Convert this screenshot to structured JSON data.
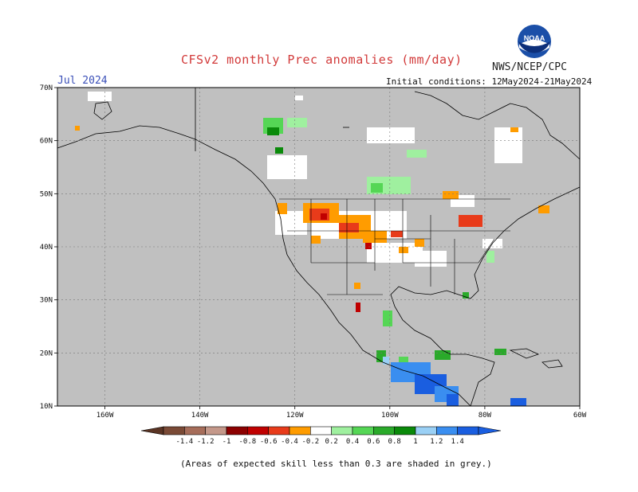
{
  "header": {
    "title": "CFSv2 monthly Prec anomalies (mm/day)",
    "agency": "NWS/NCEP/CPC",
    "month": "Jul 2024",
    "initial_conditions": "Initial conditions: 12May2024-21May2024",
    "logo_text": "NOAA"
  },
  "map": {
    "region": "North America",
    "lon_range": [
      -170,
      -60
    ],
    "lat_range": [
      10,
      70
    ],
    "background_color": "#c0c0c0",
    "x_ticks": [
      "160W",
      "140W",
      "120W",
      "100W",
      "80W",
      "60W"
    ],
    "y_ticks": [
      "70N",
      "60N",
      "50N",
      "40N",
      "30N",
      "20N",
      "10N"
    ]
  },
  "colorbar": {
    "labels": [
      "-1.4",
      "-1.2",
      "-1",
      "-0.8",
      "-0.6",
      "-0.4",
      "-0.2",
      "0.2",
      "0.4",
      "0.6",
      "0.8",
      "1",
      "1.2",
      "1.4"
    ],
    "colors": [
      "#7a4a36",
      "#a66d5a",
      "#c4988a",
      "#8c0000",
      "#c00000",
      "#e83b1a",
      "#ff9c00",
      "#ffffff",
      "#9ff09f",
      "#55d655",
      "#2aaa2a",
      "#0a8a0a",
      "#9ad0f5",
      "#3a8ef0",
      "#1a5ee0"
    ]
  },
  "footer": "(Areas of expected skill less than 0.3 are shaded in grey.)"
}
